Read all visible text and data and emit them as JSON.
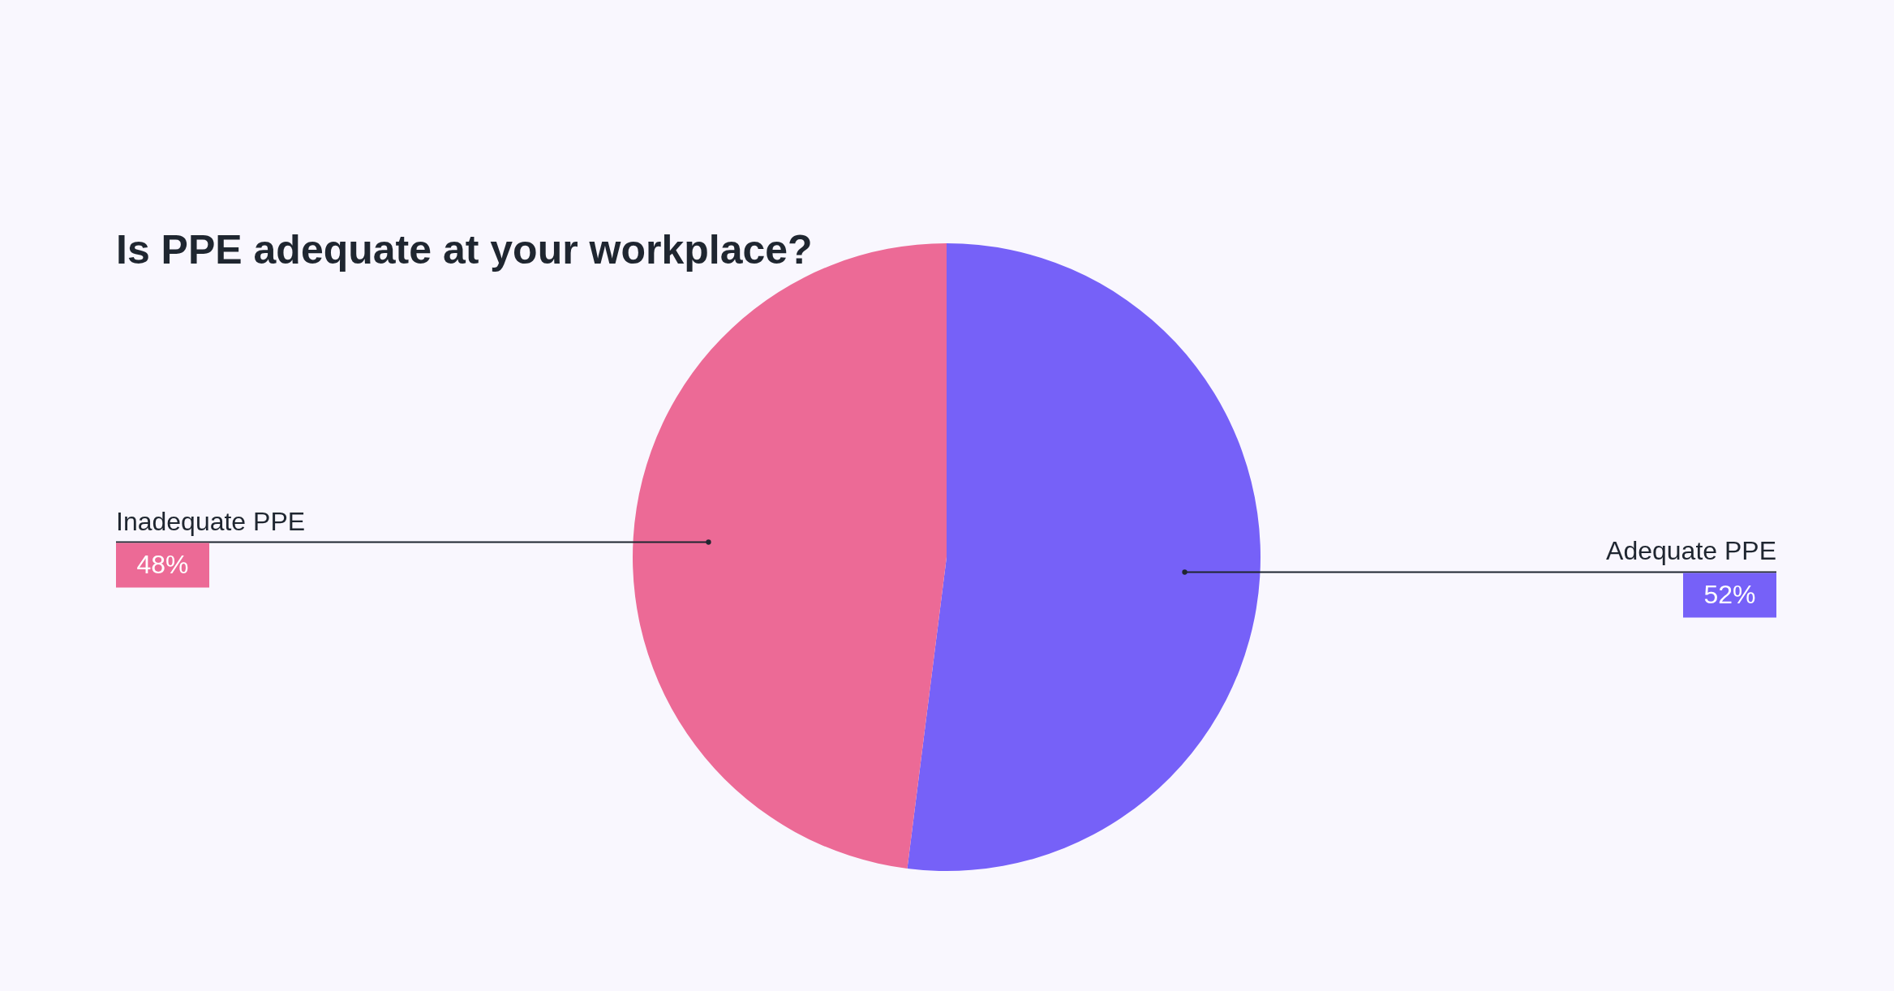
{
  "chart_data": {
    "type": "pie",
    "title": "Is PPE adequate at your workplace?",
    "categories": [
      "Adequate PPE",
      "Inadequate PPE"
    ],
    "values": [
      52,
      48
    ],
    "value_labels": [
      "52%",
      "48%"
    ],
    "colors": [
      "#7661f8",
      "#ec6a96"
    ],
    "legend": false
  }
}
